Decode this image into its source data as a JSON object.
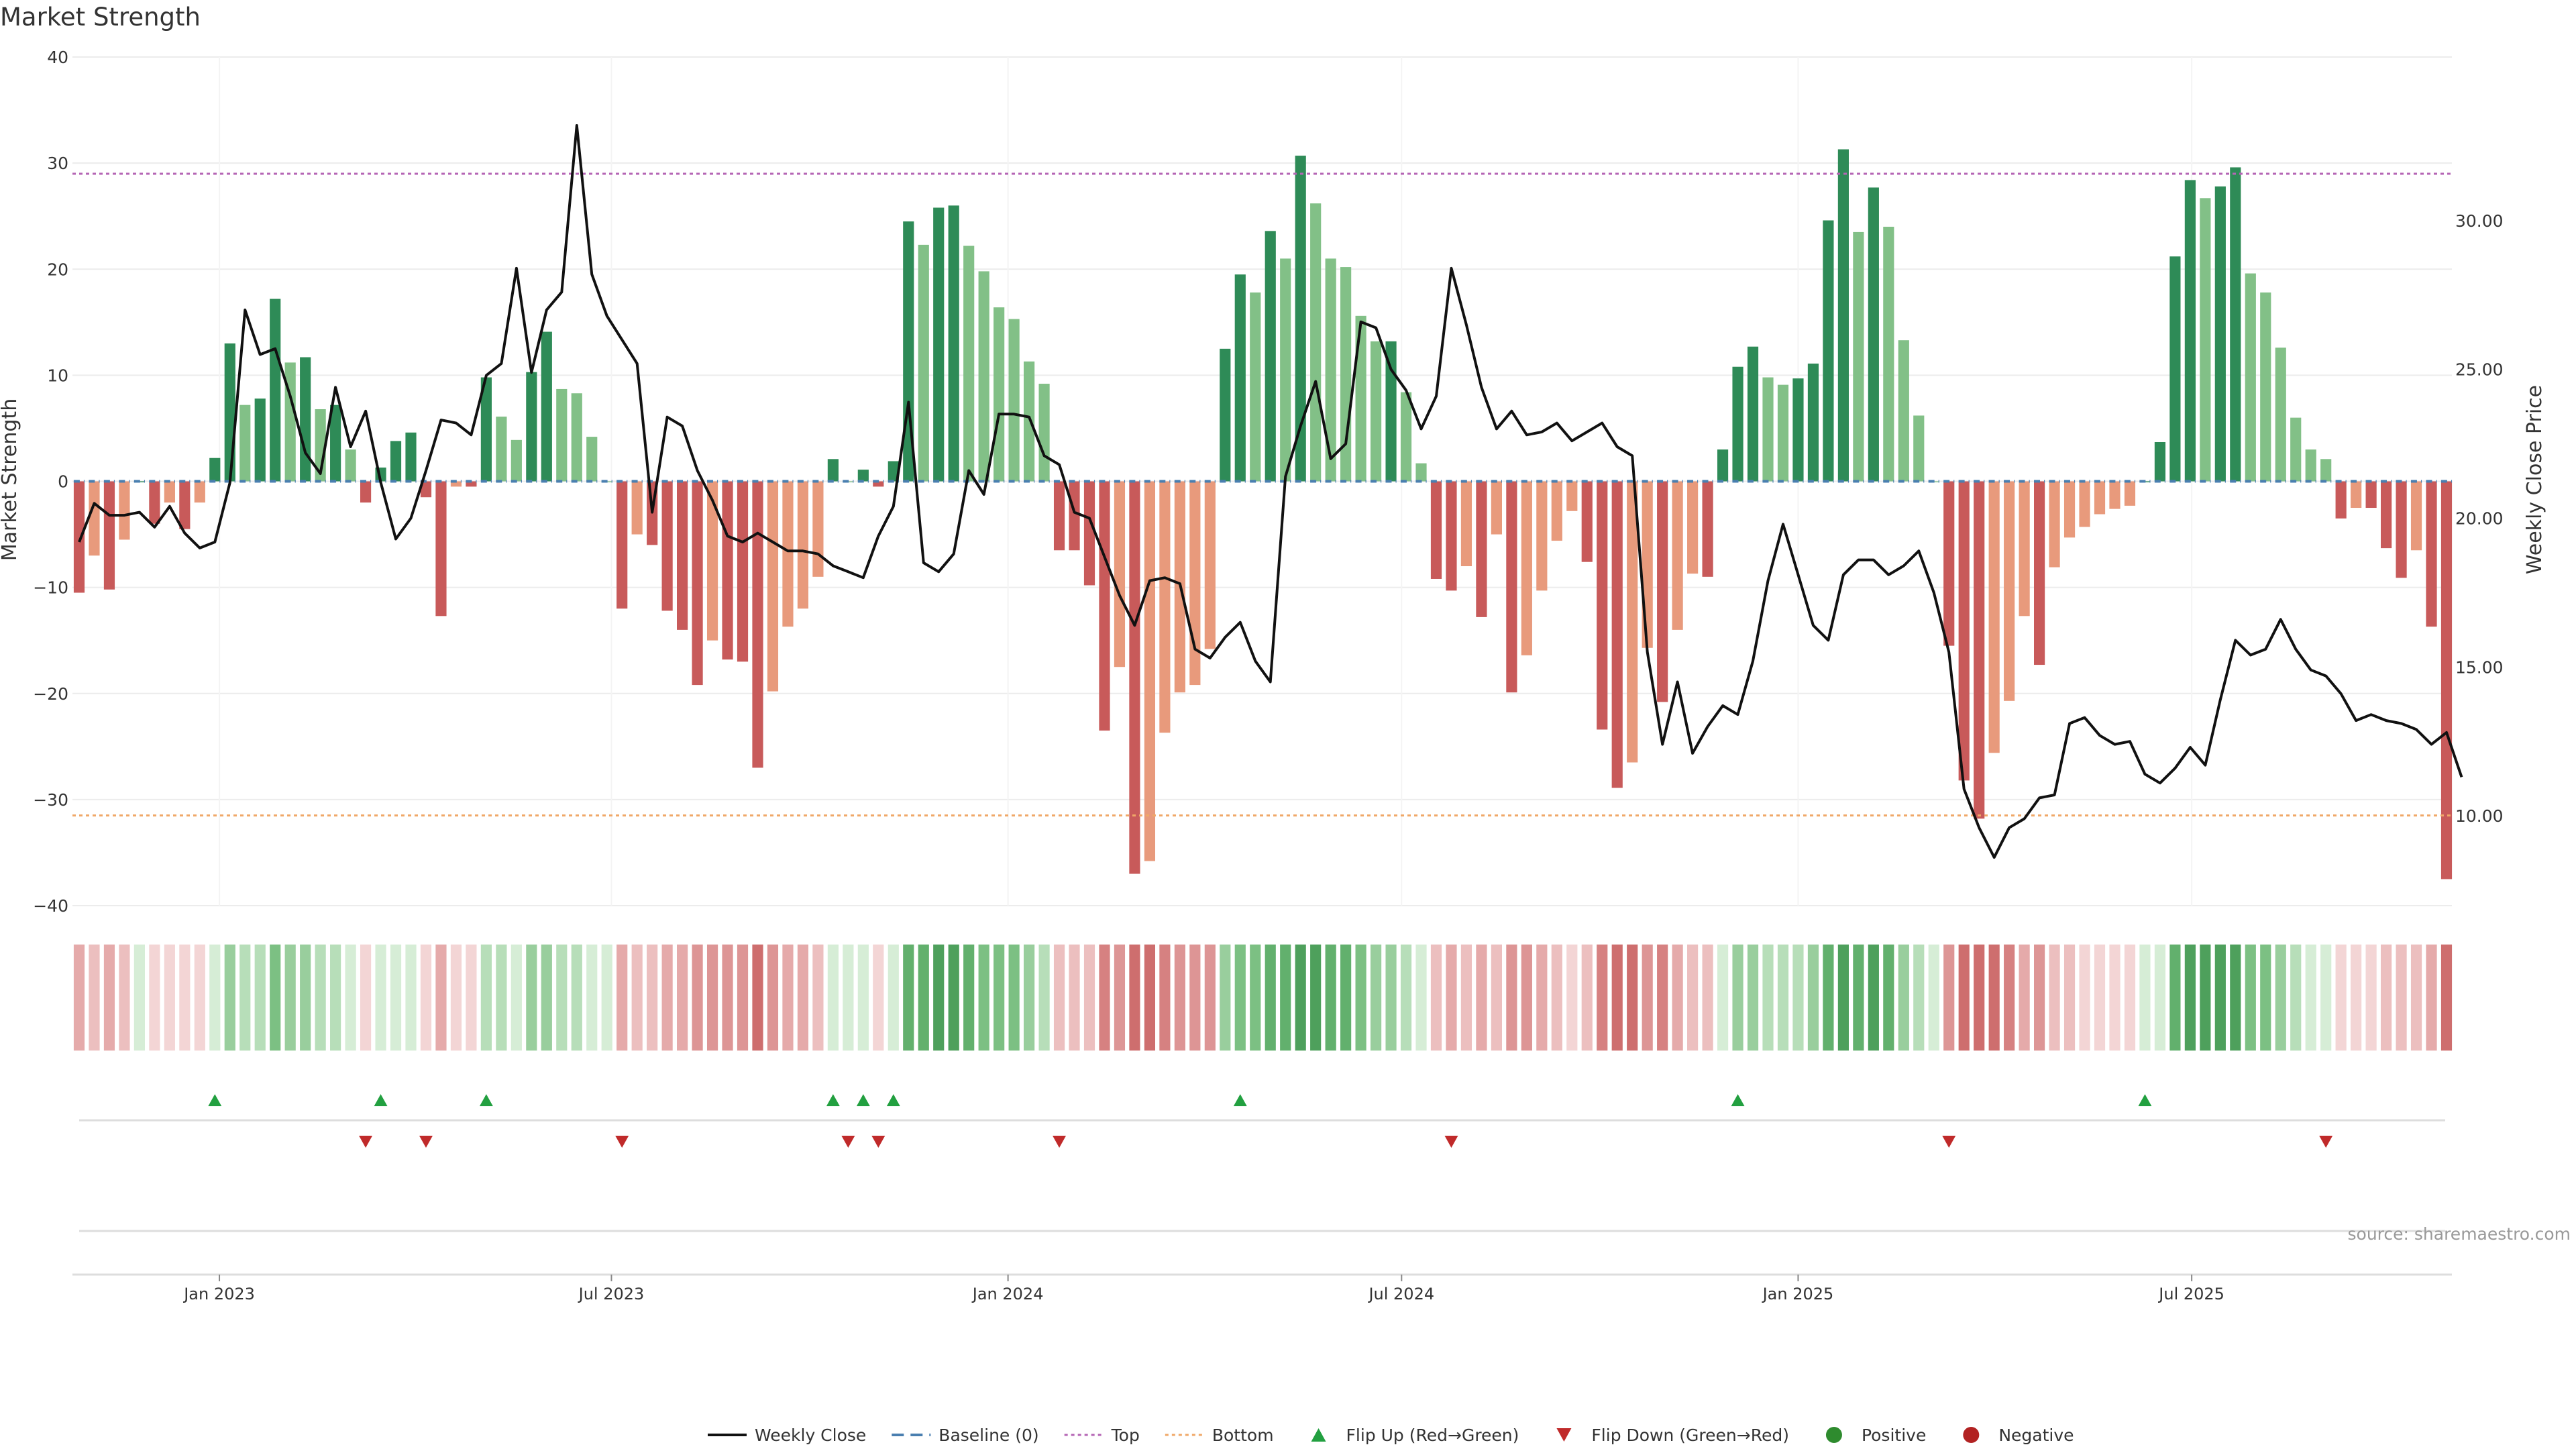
{
  "chart_data": {
    "type": "bar",
    "title": "Market Strength",
    "ylabel_left": "Market Strength",
    "ylabel_right": "Weekly Close Price",
    "left_ylim": [
      -40,
      40
    ],
    "left_ticks": [
      -40,
      -30,
      -20,
      -10,
      0,
      10,
      20,
      30,
      40
    ],
    "left_tick_labels": [
      "−40",
      "−30",
      "−20",
      "−10",
      "0",
      "10",
      "20",
      "30",
      "40"
    ],
    "right_ylim": [
      6.98,
      35.5
    ],
    "right_ticks": [
      10,
      15,
      20,
      25,
      30
    ],
    "right_tick_labels": [
      "10.00",
      "15.00",
      "20.00",
      "25.00",
      "30.00"
    ],
    "top_line": 29,
    "bottom_line": -31.5,
    "x_ticks": [
      {
        "label": "Jan 2023",
        "week": 9.3
      },
      {
        "label": "Jul 2023",
        "week": 35.3
      },
      {
        "label": "Jan 2024",
        "week": 61.6
      },
      {
        "label": "Jul 2024",
        "week": 87.7
      },
      {
        "label": "Jan 2025",
        "week": 114.0
      },
      {
        "label": "Jul 2025",
        "week": 140.1
      }
    ],
    "strength": [
      -10.5,
      -7,
      -10.2,
      -5.5,
      0,
      -4,
      -2,
      -4.5,
      -2,
      2.2,
      13,
      7.2,
      7.8,
      17.2,
      11.2,
      11.7,
      6.8,
      7.2,
      3,
      -2,
      1.3,
      3.8,
      4.6,
      -1.5,
      -12.7,
      -0.5,
      -0.5,
      9.8,
      6.1,
      3.9,
      10.3,
      14.1,
      8.7,
      8.3,
      4.2,
      0,
      -12,
      -5,
      -6,
      -12.2,
      -14,
      -19.2,
      -15,
      -16.8,
      -17,
      -27,
      -19.8,
      -13.7,
      -12,
      -9,
      2.1,
      0,
      1.1,
      -0.5,
      1.9,
      24.5,
      22.3,
      25.8,
      26,
      22.2,
      19.8,
      16.4,
      15.3,
      11.3,
      9.2,
      -6.5,
      -6.5,
      -9.8,
      -23.5,
      -17.5,
      -37,
      -35.8,
      -23.7,
      -19.9,
      -19.2,
      -15.8,
      12.5,
      19.5,
      17.8,
      23.6,
      21,
      30.7,
      26.2,
      21,
      20.2,
      15.6,
      13.2,
      13.2,
      8.4,
      1.7,
      -9.2,
      -10.3,
      -8,
      -12.8,
      -5,
      -19.9,
      -16.4,
      -10.3,
      -5.6,
      -2.8,
      -7.6,
      -23.4,
      -28.9,
      -26.5,
      -15.7,
      -20.8,
      -14,
      -8.7,
      -9,
      3,
      10.8,
      12.7,
      9.8,
      9.1,
      9.7,
      11.1,
      24.6,
      31.3,
      23.5,
      27.7,
      24,
      13.3,
      6.2,
      0,
      -15.5,
      -28.2,
      -31.8,
      -25.6,
      -20.7,
      -12.7,
      -17.3,
      -8.1,
      -5.3,
      -4.3,
      -3.1,
      -2.6,
      -2.3,
      0,
      3.7,
      21.2,
      28.4,
      26.7,
      27.8,
      29.6,
      19.6,
      17.8,
      12.6,
      6,
      3,
      2.1,
      -3.5,
      -2.5,
      -2.5,
      -6.3,
      -9.1,
      -6.5,
      -13.7,
      -37.5
    ],
    "weekly_close": [
      19.2,
      20.5,
      20.1,
      20.1,
      20.2,
      19.7,
      20.4,
      19.5,
      19.0,
      19.2,
      21.2,
      27.0,
      25.5,
      25.7,
      24.1,
      22.2,
      21.5,
      24.4,
      22.4,
      23.6,
      21.2,
      19.3,
      20.0,
      21.6,
      23.3,
      23.2,
      22.8,
      24.8,
      25.2,
      28.4,
      24.9,
      27.0,
      27.6,
      33.2,
      28.2,
      26.8,
      26.0,
      25.2,
      20.2,
      23.4,
      23.1,
      21.6,
      20.6,
      19.4,
      19.2,
      19.5,
      19.2,
      18.9,
      18.9,
      18.8,
      18.4,
      18.2,
      18.0,
      19.4,
      20.4,
      23.9,
      18.5,
      18.2,
      18.8,
      21.6,
      20.8,
      23.5,
      23.5,
      23.4,
      22.1,
      21.8,
      20.2,
      20.0,
      18.7,
      17.4,
      16.4,
      17.9,
      18.0,
      17.8,
      15.6,
      15.3,
      16.0,
      16.5,
      15.2,
      14.5,
      21.4,
      23.1,
      24.6,
      22.0,
      22.5,
      26.6,
      26.4,
      25.0,
      24.3,
      23.0,
      24.1,
      28.4,
      26.5,
      24.4,
      23.0,
      23.6,
      22.8,
      22.9,
      23.2,
      22.6,
      22.9,
      23.2,
      22.4,
      22.1,
      15.5,
      12.4,
      14.5,
      12.1,
      13.0,
      13.7,
      13.4,
      15.2,
      17.9,
      19.8,
      18.1,
      16.4,
      15.9,
      18.1,
      18.6,
      18.6,
      18.1,
      18.4,
      18.9,
      17.5,
      15.5,
      10.9,
      9.6,
      8.6,
      9.6,
      9.9,
      10.6,
      10.7,
      13.1,
      13.3,
      12.7,
      12.4,
      12.5,
      11.4,
      11.1,
      11.6,
      12.3,
      11.7,
      13.9,
      15.9,
      15.4,
      15.6,
      16.6,
      15.6,
      14.9,
      14.7,
      14.1,
      13.2,
      13.4,
      13.2,
      13.1,
      12.9,
      12.4,
      12.8,
      11.3
    ],
    "flip_up_weeks": [
      9,
      20,
      27,
      50,
      52,
      54,
      77,
      110,
      137
    ],
    "flip_down_weeks": [
      19,
      23,
      36,
      51,
      53,
      65,
      91,
      124,
      149
    ],
    "legend": [
      "Weekly Close",
      "Baseline (0)",
      "Top",
      "Bottom",
      "Flip Up (Red→Green)",
      "Flip Down (Green→Red)",
      "Positive",
      "Negative"
    ],
    "colors": {
      "pos_dark": "#2e8b57",
      "pos_light": "#82c087",
      "neg_dark": "#c85a5a",
      "neg_light": "#e89a7c",
      "price_line": "#111111",
      "baseline": "#4a7fb0",
      "top_line": "#b565b5",
      "bottom_line": "#f0a868",
      "flip_up": "#22a040",
      "flip_down": "#c02a2a",
      "positive_marker": "#2e8b2e",
      "negative_marker": "#b22222",
      "grid": "#ececec",
      "axis": "#dddddd"
    }
  },
  "source_text": "source: sharemaestro.com"
}
